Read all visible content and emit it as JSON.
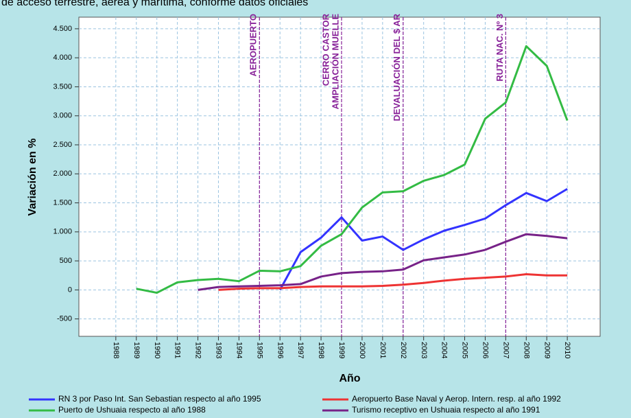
{
  "chart_data": {
    "type": "line",
    "title": "de acceso terrestre, aérea y marítima, conforme datos oficiales",
    "xlabel": "Año",
    "ylabel": "Variación en %",
    "x": [
      1988,
      1989,
      1990,
      1991,
      1992,
      1993,
      1994,
      1995,
      1996,
      1997,
      1998,
      1999,
      2000,
      2001,
      2002,
      2003,
      2004,
      2005,
      2006,
      2007,
      2008,
      2009,
      2010
    ],
    "xlim": [
      1986.2,
      2011.6
    ],
    "xticks": [
      1988,
      1989,
      1990,
      1991,
      1992,
      1993,
      1994,
      1995,
      1996,
      1997,
      1998,
      1999,
      2000,
      2001,
      2002,
      2003,
      2004,
      2005,
      2006,
      2007,
      2008,
      2009,
      2010
    ],
    "ylim": [
      -800,
      4700
    ],
    "yticks": [
      -500,
      0,
      500,
      {
        "value": 1000,
        "label": "1.000"
      },
      {
        "value": 1500,
        "label": "1.500"
      },
      {
        "value": 2000,
        "label": "2.000"
      },
      {
        "value": 2500,
        "label": "2.500"
      },
      {
        "value": 3000,
        "label": "3.000"
      },
      {
        "value": 3500,
        "label": "3.500"
      },
      {
        "value": 4000,
        "label": "4.000"
      },
      {
        "value": 4500,
        "label": "4.500"
      }
    ],
    "grid": true,
    "series": [
      {
        "name": "RN 3 por Paso Int. San Sebastian respecto al año 1995",
        "color": "#3333ff",
        "values": [
          null,
          null,
          null,
          null,
          null,
          null,
          null,
          null,
          0,
          650,
          900,
          1250,
          850,
          920,
          690,
          870,
          1020,
          1120,
          1230,
          1460,
          1670,
          1530,
          1740
        ]
      },
      {
        "name": "Aeropuerto Base Naval y Aerop.  Intern. resp. al año 1992",
        "color": "#ee3333",
        "values": [
          null,
          null,
          null,
          null,
          null,
          0,
          20,
          30,
          30,
          50,
          60,
          60,
          60,
          70,
          90,
          120,
          160,
          190,
          210,
          230,
          270,
          250,
          250
        ]
      },
      {
        "name": "Puerto de Ushuaia respecto al año 1988",
        "color": "#33bb44",
        "values": [
          null,
          20,
          -50,
          130,
          170,
          190,
          150,
          330,
          320,
          410,
          760,
          960,
          1420,
          1680,
          1700,
          1880,
          1980,
          2160,
          2950,
          3230,
          4200,
          3860,
          2920
        ]
      },
      {
        "name": "Turismo receptivo en Ushuaia respecto al año 1991",
        "color": "#772288",
        "values": [
          null,
          null,
          null,
          null,
          0,
          50,
          60,
          70,
          80,
          100,
          230,
          290,
          310,
          320,
          350,
          510,
          560,
          610,
          690,
          830,
          960,
          930,
          890
        ]
      }
    ],
    "annotations": [
      {
        "x": 1995,
        "labels": [
          "AEROPUERTO"
        ]
      },
      {
        "x": 1999,
        "labels": [
          "CERRO CASTOR",
          "AMPLIACIÓN MUELLE"
        ]
      },
      {
        "x": 2002,
        "labels": [
          "DEVALUACIÓN DEL $ AR"
        ]
      },
      {
        "x": 2007,
        "labels": [
          "RUTA NAC. Nº 3"
        ]
      }
    ],
    "annotation_color": "#882299"
  }
}
